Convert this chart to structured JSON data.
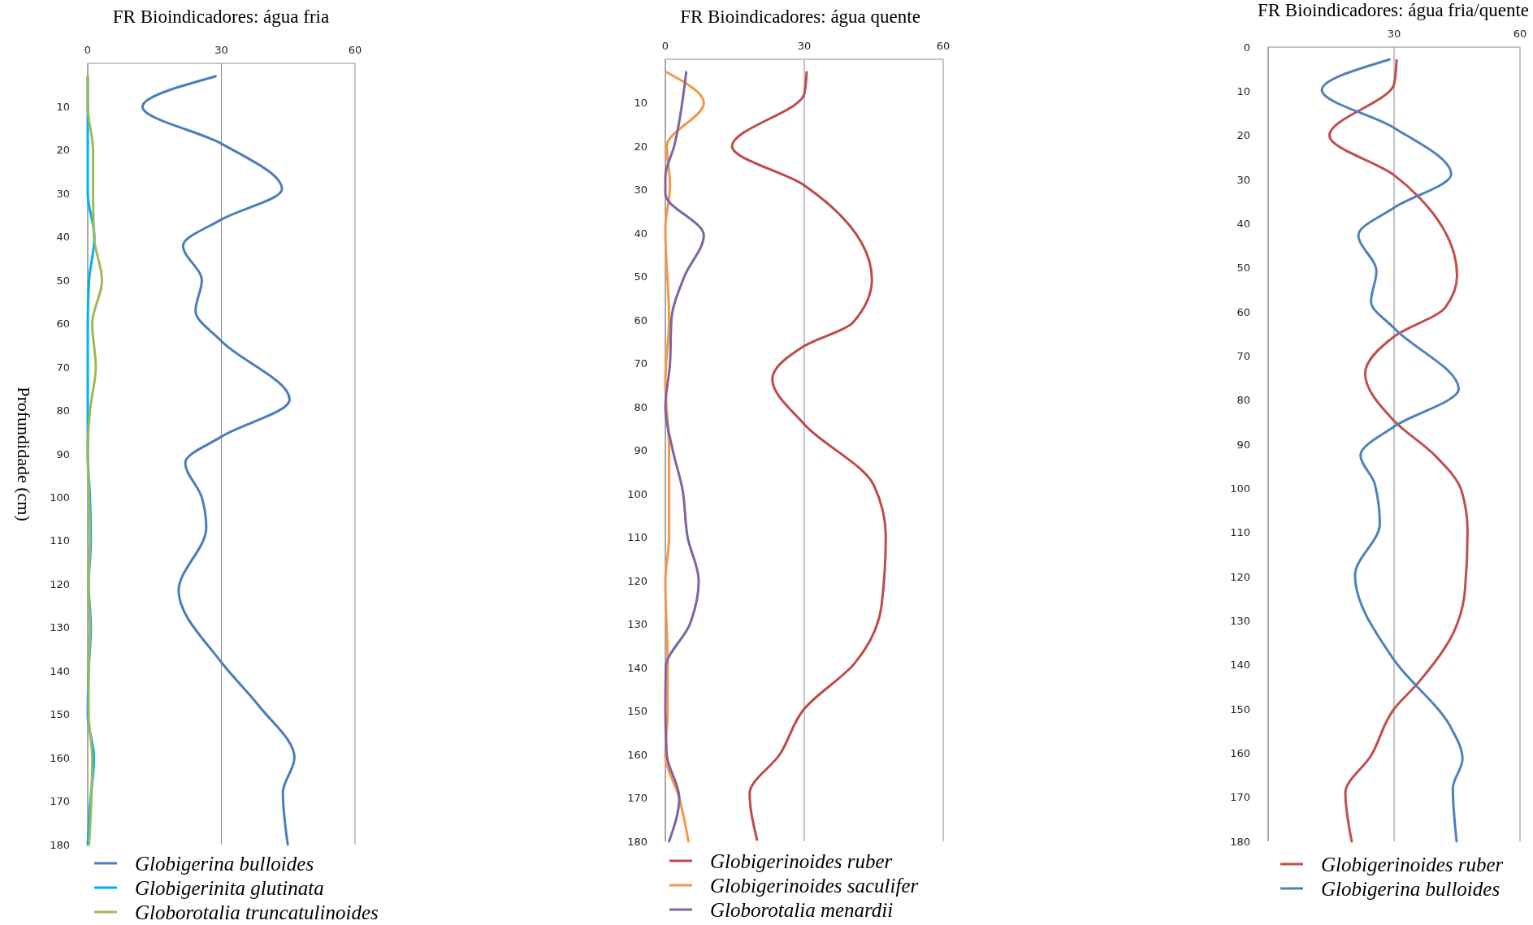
{
  "chart_data": [
    {
      "type": "line",
      "orientation": "horizontal",
      "title": "FR Bioindicadores: água fria",
      "ylabel": "Profundidade (cm)",
      "xlim": [
        0,
        60
      ],
      "xticks": [
        0,
        30,
        60
      ],
      "ylim": [
        180,
        0
      ],
      "yticks": [
        10,
        20,
        30,
        40,
        50,
        60,
        70,
        80,
        90,
        100,
        110,
        120,
        130,
        140,
        150,
        160,
        170,
        180
      ],
      "grid": "x",
      "legend": "bottom",
      "series": [
        {
          "name": "Globigerina bulloides",
          "color": "#4a7ebb",
          "x": [
            3,
            10,
            18.5,
            29,
            36,
            42,
            50,
            57,
            64,
            77.5,
            86,
            92,
            100,
            107,
            121.5,
            138,
            148,
            160,
            168,
            180
          ],
          "values": [
            28.7,
            12.3,
            30,
            43.6,
            30,
            21.4,
            25.6,
            24.2,
            30,
            45.3,
            30,
            21.9,
            25.6,
            26.6,
            20.4,
            30,
            38.4,
            46.4,
            43.8,
            44.9
          ]
        },
        {
          "name": "Globigerinita glutinata",
          "color": "#00b0f0",
          "x": [
            3,
            10,
            20,
            30,
            40,
            50,
            60,
            70,
            80,
            90,
            100,
            110,
            120,
            130,
            140,
            150,
            160,
            170,
            180
          ],
          "values": [
            0,
            0,
            0,
            0,
            1.5,
            0.3,
            0,
            0,
            0,
            0,
            0.5,
            0.7,
            0.2,
            0.7,
            0.2,
            0,
            1.4,
            0.6,
            0
          ]
        },
        {
          "name": "Globorotalia truncatulinoides",
          "color": "#9bbb59",
          "x": [
            3,
            10,
            20,
            30,
            40,
            50,
            60,
            70,
            80,
            90,
            100,
            110,
            120,
            130,
            140,
            150,
            160,
            170,
            180
          ],
          "values": [
            0,
            0,
            1.2,
            1.2,
            1.4,
            3.2,
            1,
            1.8,
            0.5,
            0,
            0.3,
            0.5,
            0.2,
            0.5,
            0.2,
            0.2,
            1,
            0.8,
            0.3
          ]
        }
      ]
    },
    {
      "type": "line",
      "orientation": "horizontal",
      "title": "FR Bioindicadores: água quente",
      "xlim": [
        0,
        60
      ],
      "xticks": [
        0,
        30,
        60
      ],
      "ylim": [
        180,
        0
      ],
      "yticks": [
        10,
        20,
        30,
        40,
        50,
        60,
        70,
        80,
        90,
        100,
        110,
        120,
        130,
        140,
        150,
        160,
        170,
        180
      ],
      "grid": "x",
      "legend": "bottom",
      "series": [
        {
          "name": "Globigerinoides ruber",
          "color": "#be4b48",
          "x": [
            3,
            8,
            20,
            29,
            50.7,
            60.6,
            66,
            73.6,
            84,
            98,
            109.7,
            125.6,
            139,
            149.5,
            160,
            169,
            179.6
          ],
          "values": [
            30.5,
            30,
            14.4,
            30,
            44.6,
            40.5,
            30,
            23.1,
            30,
            45,
            47.6,
            46.7,
            40.9,
            30,
            24.7,
            18.2,
            19.8
          ]
        },
        {
          "name": "Globigerinoides saculifer",
          "color": "#f79646",
          "x": [
            3,
            10,
            20,
            29,
            39,
            60,
            74,
            90,
            110,
            120,
            140,
            150,
            160,
            170,
            180
          ],
          "values": [
            0.3,
            8.3,
            0.3,
            1,
            0,
            0.8,
            0,
            0.8,
            0.8,
            0,
            0.5,
            0.5,
            0,
            3,
            5
          ]
        },
        {
          "name": "Globorotalia menardii",
          "color": "#7f64a0",
          "x": [
            3,
            20,
            27,
            31,
            40.5,
            50,
            60,
            70,
            80,
            90,
            99,
            110,
            120,
            130,
            140,
            150,
            160,
            170,
            180
          ],
          "values": [
            4.5,
            1.9,
            0,
            0,
            8.3,
            4.1,
            1.3,
            1,
            0,
            1.6,
            3.7,
            4.8,
            7.2,
            5.3,
            0.1,
            0,
            0.3,
            3,
            0.8
          ]
        }
      ]
    },
    {
      "type": "line",
      "orientation": "horizontal",
      "title": "FR Bioindicadores: água fria/quente",
      "xlim": [
        0,
        60
      ],
      "xticks": [
        {
          "value": 0,
          "label": null
        },
        30,
        60
      ],
      "ylim": [
        180,
        0
      ],
      "yticks": [
        0,
        10,
        20,
        30,
        40,
        50,
        60,
        70,
        80,
        90,
        100,
        110,
        120,
        130,
        140,
        150,
        160,
        170,
        180
      ],
      "grid": "x",
      "legend": "bottom",
      "series": [
        {
          "name": "Globigerinoides ruber",
          "color": "#c0504d",
          "x": [
            3,
            8.4,
            20,
            29,
            34,
            51.8,
            59,
            65.6,
            74,
            84.7,
            92.5,
            100.6,
            109.6,
            123,
            133,
            144,
            150,
            160.6,
            169,
            180
          ],
          "values": [
            30.6,
            30,
            14.6,
            30,
            35.9,
            45,
            42.2,
            30,
            23.1,
            30,
            39.7,
            46.1,
            47.5,
            46.9,
            44,
            35.8,
            30,
            24.5,
            18.4,
            19.9
          ]
        },
        {
          "name": "Globigerina bulloides",
          "color": "#4f81bd",
          "x": [
            2.8,
            9.7,
            18.3,
            28.8,
            36.4,
            42.6,
            50.8,
            57.7,
            63.7,
            77.5,
            86,
            92.5,
            99,
            108,
            119.7,
            138.9,
            153.8,
            161.3,
            168,
            180
          ],
          "values": [
            28.9,
            12.8,
            30,
            43.6,
            30,
            21.5,
            25.8,
            24.5,
            30,
            45.4,
            30,
            22,
            25.4,
            26.6,
            20.7,
            30,
            43.3,
            46.3,
            44,
            44.9
          ]
        }
      ]
    }
  ]
}
